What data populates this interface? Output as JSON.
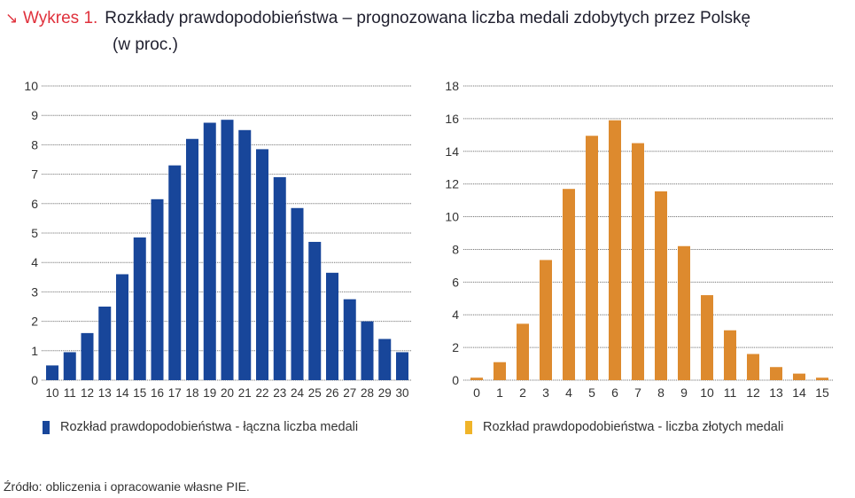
{
  "header": {
    "arrow_icon": "↘",
    "label": "Wykres 1.",
    "title_line1": "Rozkłady prawdopodobieństwa – prognozowana liczba medali zdobytych przez Polskę",
    "title_line2": "(w proc.)"
  },
  "colors": {
    "accent": "#e0313c",
    "series_total": "#18469a",
    "series_gold": "#dd8a2e",
    "legend_gold": "#f0b429",
    "grid": "#777777"
  },
  "chart_data": [
    {
      "type": "bar",
      "title": "Rozkład prawdopodobieństwa - łączna liczba medali",
      "xlabel": "",
      "ylabel": "",
      "categories": [
        "10",
        "11",
        "12",
        "13",
        "14",
        "15",
        "16",
        "17",
        "18",
        "19",
        "20",
        "21",
        "22",
        "23",
        "24",
        "25",
        "26",
        "27",
        "28",
        "29",
        "30"
      ],
      "values": [
        0.5,
        0.95,
        1.6,
        2.5,
        3.6,
        4.85,
        6.15,
        7.3,
        8.2,
        8.75,
        8.85,
        8.5,
        7.85,
        6.9,
        5.85,
        4.7,
        3.65,
        2.75,
        2.0,
        1.4,
        0.95
      ],
      "ylim": [
        0,
        10
      ],
      "yticks": [
        0,
        1,
        2,
        3,
        4,
        5,
        6,
        7,
        8,
        9,
        10
      ],
      "grid": true,
      "legend": {
        "label": "Rozkład prawdopodobieństwa - łączna liczba medali",
        "placement": "bottom"
      }
    },
    {
      "type": "bar",
      "title": "Rozkład prawdopodobieństwa - liczba złotych medali",
      "xlabel": "",
      "ylabel": "",
      "categories": [
        "0",
        "1",
        "2",
        "3",
        "4",
        "5",
        "6",
        "7",
        "8",
        "9",
        "10",
        "11",
        "12",
        "13",
        "14",
        "15"
      ],
      "values": [
        0.15,
        1.1,
        3.45,
        7.35,
        11.7,
        14.95,
        15.9,
        14.5,
        11.55,
        8.2,
        5.2,
        3.05,
        1.6,
        0.8,
        0.4,
        0.15
      ],
      "ylim": [
        0,
        18
      ],
      "yticks": [
        0,
        2,
        4,
        6,
        8,
        10,
        12,
        14,
        16,
        18
      ],
      "grid": true,
      "legend": {
        "label": "Rozkład prawdopodobieństwa - liczba złotych medali",
        "placement": "bottom"
      }
    }
  ],
  "footer": {
    "source": "Źródło: obliczenia i opracowanie własne PIE."
  }
}
